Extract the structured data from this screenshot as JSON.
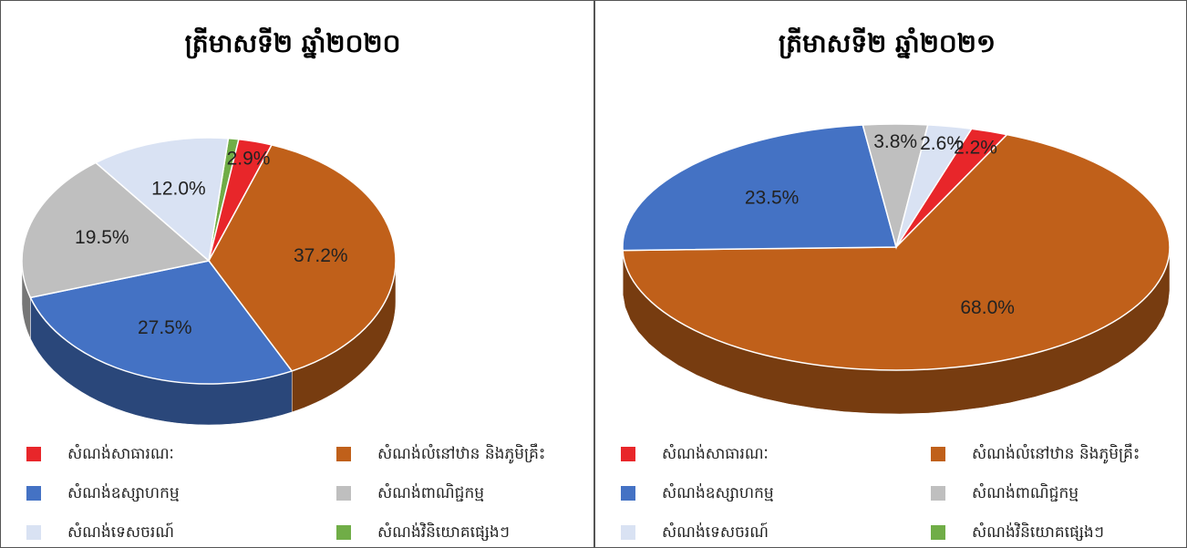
{
  "chart_data": [
    {
      "type": "pie",
      "title": "ត្រីមាសទី២ ឆ្នាំ២០២០",
      "categories": [
        "សំណង់សាធារណៈ",
        "សំណង់លំនៅឋាន និងភូមិគ្រឹះ",
        "សំណង់ឧស្សាហកម្ម",
        "សំណង់ពាណិជ្ជកម្ម",
        "សំណង់ទេសចរណ៍",
        "សំណង់វិនិយោគផ្សេងៗ"
      ],
      "values": [
        2.9,
        37.2,
        27.5,
        19.5,
        12.0,
        0.9
      ],
      "value_labels": [
        "2.9%",
        "37.2%",
        "27.5%",
        "19.5%",
        "12.0%",
        null
      ],
      "colors": [
        "#e8262a",
        "#c0601a",
        "#4472c4",
        "#bfbfbf",
        "#d9e2f3",
        "#70ad47"
      ]
    },
    {
      "type": "pie",
      "title": "ត្រីមាសទី២ ឆ្នាំ២០២១",
      "categories": [
        "សំណង់សាធារណៈ",
        "សំណង់លំនៅឋាន និងភូមិគ្រឹះ",
        "សំណង់ឧស្សាហកម្ម",
        "សំណង់ពាណិជ្ជកម្ម",
        "សំណង់ទេសចរណ៍",
        "សំណង់វិនិយោគផ្សេងៗ"
      ],
      "values": [
        2.2,
        68.0,
        23.5,
        3.8,
        2.6,
        0
      ],
      "value_labels": [
        "2.2%",
        "68.0%",
        "23.5%",
        "3.8%",
        "2.6%",
        null
      ],
      "colors": [
        "#e8262a",
        "#c0601a",
        "#4472c4",
        "#bfbfbf",
        "#d9e2f3",
        "#70ad47"
      ]
    }
  ]
}
